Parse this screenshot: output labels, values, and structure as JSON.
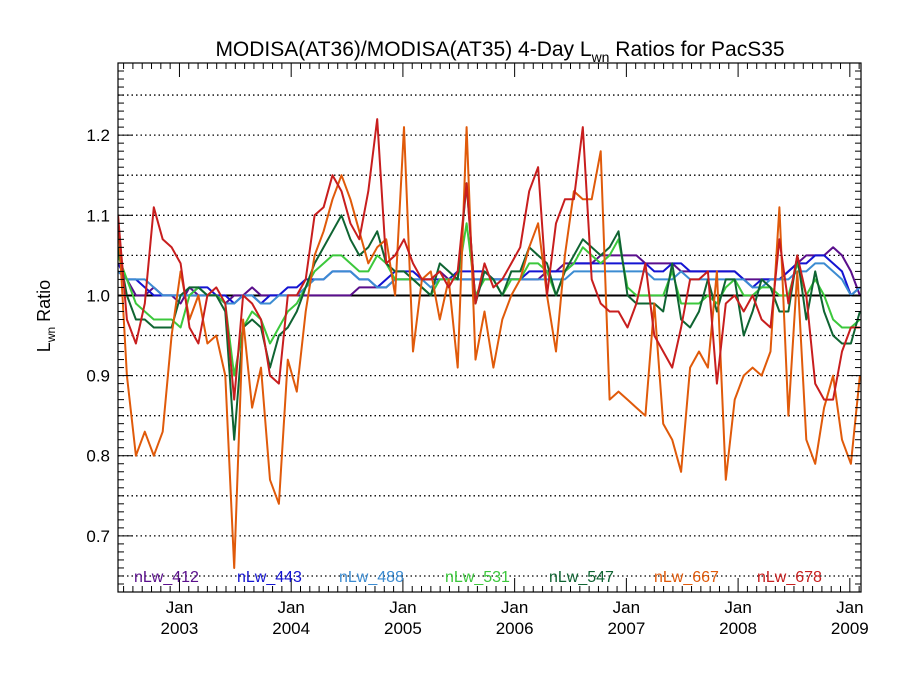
{
  "chart_data": {
    "type": "line",
    "title_main": "MODISA(AT36)/MODISA(AT35) 4-Day L",
    "title_sub": "wn",
    "title_tail": " Ratios for PacS35",
    "ylabel_main": "L",
    "ylabel_sub": "wn",
    "ylabel_tail": " Ratio",
    "xlim": [
      2002.45,
      2009.1
    ],
    "ylim": [
      0.63,
      1.29
    ],
    "yticks": [
      {
        "v": 0.7,
        "label": "0.7"
      },
      {
        "v": 0.8,
        "label": "0.8"
      },
      {
        "v": 0.9,
        "label": "0.9"
      },
      {
        "v": 1.0,
        "label": "1.0"
      },
      {
        "v": 1.1,
        "label": "1.1"
      },
      {
        "v": 1.2,
        "label": "1.2"
      }
    ],
    "grid_y": [
      0.65,
      0.7,
      0.75,
      0.8,
      0.85,
      0.9,
      0.95,
      1.05,
      1.1,
      1.15,
      1.2,
      1.25
    ],
    "reference_line": 1.0,
    "xticks": [
      {
        "v": 2003,
        "month": "Jan",
        "year": "2003"
      },
      {
        "v": 2004,
        "month": "Jan",
        "year": "2004"
      },
      {
        "v": 2005,
        "month": "Jan",
        "year": "2005"
      },
      {
        "v": 2006,
        "month": "Jan",
        "year": "2006"
      },
      {
        "v": 2007,
        "month": "Jan",
        "year": "2007"
      },
      {
        "v": 2008,
        "month": "Jan",
        "year": "2008"
      },
      {
        "v": 2009,
        "month": "Jan",
        "year": "2009"
      }
    ],
    "x": [
      2002.45,
      2002.53,
      2002.61,
      2002.69,
      2002.77,
      2002.85,
      2002.93,
      2003.01,
      2003.09,
      2003.17,
      2003.25,
      2003.33,
      2003.41,
      2003.49,
      2003.57,
      2003.65,
      2003.73,
      2003.81,
      2003.89,
      2003.97,
      2004.05,
      2004.13,
      2004.21,
      2004.29,
      2004.37,
      2004.45,
      2004.53,
      2004.61,
      2004.69,
      2004.77,
      2004.85,
      2004.93,
      2005.01,
      2005.09,
      2005.17,
      2005.25,
      2005.33,
      2005.41,
      2005.49,
      2005.57,
      2005.65,
      2005.73,
      2005.81,
      2005.89,
      2005.97,
      2006.05,
      2006.13,
      2006.21,
      2006.29,
      2006.37,
      2006.45,
      2006.53,
      2006.61,
      2006.69,
      2006.77,
      2006.85,
      2006.93,
      2007.01,
      2007.09,
      2007.17,
      2007.25,
      2007.33,
      2007.41,
      2007.49,
      2007.57,
      2007.65,
      2007.73,
      2007.81,
      2007.89,
      2007.97,
      2008.05,
      2008.13,
      2008.21,
      2008.29,
      2008.37,
      2008.45,
      2008.53,
      2008.61,
      2008.69,
      2008.77,
      2008.85,
      2008.93,
      2009.01,
      2009.09
    ],
    "series": [
      {
        "name": "nLw_412",
        "color": "#5a0f8c",
        "values": [
          1.03,
          1.02,
          1.0,
          1.0,
          1.01,
          1.0,
          1.0,
          0.99,
          1.01,
          1.0,
          1.0,
          1.0,
          0.99,
          1.0,
          1.0,
          1.01,
          1.0,
          1.0,
          1.0,
          1.0,
          1.0,
          1.0,
          1.0,
          1.0,
          1.0,
          1.0,
          1.0,
          1.01,
          1.01,
          1.01,
          1.01,
          1.02,
          1.02,
          1.02,
          1.02,
          1.02,
          1.03,
          1.02,
          1.02,
          1.02,
          1.02,
          1.02,
          1.02,
          1.02,
          1.02,
          1.02,
          1.02,
          1.02,
          1.03,
          1.03,
          1.04,
          1.04,
          1.04,
          1.04,
          1.05,
          1.05,
          1.05,
          1.05,
          1.05,
          1.04,
          1.04,
          1.04,
          1.04,
          1.03,
          1.03,
          1.03,
          1.03,
          1.03,
          1.03,
          1.03,
          1.02,
          1.02,
          1.02,
          1.02,
          1.02,
          1.03,
          1.04,
          1.05,
          1.05,
          1.05,
          1.06,
          1.05,
          1.03,
          1.0
        ]
      },
      {
        "name": "nLw_443",
        "color": "#1414d2",
        "values": [
          1.04,
          1.02,
          1.02,
          1.01,
          1.0,
          1.0,
          1.0,
          1.0,
          1.0,
          1.01,
          1.01,
          1.0,
          1.0,
          0.99,
          1.0,
          1.0,
          0.99,
          1.0,
          1.0,
          1.01,
          1.01,
          1.02,
          1.02,
          1.02,
          1.03,
          1.03,
          1.03,
          1.02,
          1.02,
          1.01,
          1.02,
          1.03,
          1.03,
          1.03,
          1.02,
          1.02,
          1.02,
          1.02,
          1.03,
          1.03,
          1.03,
          1.03,
          1.02,
          1.02,
          1.02,
          1.02,
          1.03,
          1.03,
          1.03,
          1.03,
          1.03,
          1.04,
          1.04,
          1.04,
          1.04,
          1.04,
          1.04,
          1.04,
          1.04,
          1.04,
          1.03,
          1.03,
          1.04,
          1.04,
          1.03,
          1.03,
          1.03,
          1.03,
          1.03,
          1.03,
          1.02,
          1.01,
          1.02,
          1.02,
          1.02,
          1.03,
          1.04,
          1.04,
          1.05,
          1.05,
          1.04,
          1.03,
          1.0,
          1.01
        ]
      },
      {
        "name": "nLw_488",
        "color": "#3c8cd2",
        "values": [
          1.03,
          1.02,
          1.02,
          1.02,
          1.01,
          1.0,
          1.0,
          1.0,
          1.0,
          1.0,
          1.0,
          1.0,
          0.99,
          0.99,
          1.0,
          1.0,
          0.99,
          0.99,
          1.0,
          1.0,
          1.0,
          1.01,
          1.02,
          1.02,
          1.03,
          1.03,
          1.03,
          1.02,
          1.02,
          1.01,
          1.01,
          1.02,
          1.02,
          1.02,
          1.02,
          1.01,
          1.02,
          1.02,
          1.02,
          1.02,
          1.02,
          1.02,
          1.02,
          1.02,
          1.02,
          1.02,
          1.02,
          1.02,
          1.02,
          1.02,
          1.02,
          1.03,
          1.03,
          1.03,
          1.03,
          1.03,
          1.03,
          1.03,
          1.03,
          1.03,
          1.02,
          1.02,
          1.02,
          1.03,
          1.02,
          1.02,
          1.02,
          1.02,
          1.02,
          1.02,
          1.02,
          1.01,
          1.01,
          1.02,
          1.02,
          1.02,
          1.03,
          1.03,
          1.04,
          1.04,
          1.03,
          1.02,
          1.0,
          1.01
        ]
      },
      {
        "name": "nLw_531",
        "color": "#3cc83c",
        "values": [
          1.05,
          1.02,
          0.99,
          0.98,
          0.97,
          0.97,
          0.97,
          0.96,
          1.0,
          1.01,
          1.0,
          1.0,
          0.99,
          0.9,
          0.96,
          0.98,
          0.97,
          0.94,
          0.96,
          0.98,
          0.99,
          1.01,
          1.03,
          1.04,
          1.05,
          1.05,
          1.04,
          1.03,
          1.03,
          1.05,
          1.04,
          1.02,
          1.02,
          1.02,
          1.01,
          1.0,
          1.02,
          1.02,
          1.02,
          1.09,
          1.0,
          1.02,
          1.02,
          1.0,
          1.02,
          1.02,
          1.04,
          1.04,
          1.03,
          1.0,
          1.03,
          1.04,
          1.06,
          1.05,
          1.04,
          1.05,
          1.07,
          1.01,
          1.0,
          1.0,
          1.0,
          1.0,
          1.03,
          0.99,
          0.99,
          0.99,
          1.0,
          0.99,
          1.01,
          1.02,
          1.0,
          1.0,
          1.01,
          1.01,
          1.0,
          1.0,
          1.04,
          1.0,
          1.02,
          1.0,
          0.97,
          0.96,
          0.96,
          0.97
        ]
      },
      {
        "name": "nLw_547",
        "color": "#0f6432",
        "values": [
          1.06,
          1.0,
          0.97,
          0.97,
          0.96,
          0.96,
          0.96,
          1.0,
          1.01,
          1.01,
          1.0,
          1.0,
          0.98,
          0.82,
          0.96,
          0.97,
          0.96,
          0.91,
          0.95,
          0.96,
          0.98,
          1.01,
          1.04,
          1.06,
          1.08,
          1.1,
          1.07,
          1.05,
          1.06,
          1.08,
          1.04,
          1.03,
          1.03,
          1.02,
          1.01,
          1.0,
          1.04,
          1.03,
          1.02,
          1.14,
          0.99,
          1.03,
          1.02,
          1.0,
          1.03,
          1.03,
          1.06,
          1.05,
          1.04,
          1.0,
          1.03,
          1.05,
          1.07,
          1.06,
          1.05,
          1.06,
          1.08,
          1.0,
          0.99,
          0.99,
          0.99,
          0.98,
          1.04,
          0.97,
          0.96,
          0.98,
          1.02,
          0.98,
          1.02,
          1.02,
          0.95,
          0.98,
          1.02,
          1.01,
          0.98,
          0.98,
          1.05,
          0.97,
          1.03,
          0.98,
          0.95,
          0.94,
          0.94,
          0.98
        ]
      },
      {
        "name": "nLw_667",
        "color": "#e05a0a",
        "values": [
          1.1,
          0.9,
          0.8,
          0.83,
          0.8,
          0.83,
          0.95,
          1.03,
          0.97,
          1.0,
          0.94,
          0.95,
          0.9,
          0.66,
          0.97,
          0.86,
          0.91,
          0.77,
          0.74,
          0.92,
          0.88,
          0.98,
          1.05,
          1.08,
          1.12,
          1.15,
          1.12,
          1.08,
          1.04,
          1.06,
          1.07,
          1.0,
          1.21,
          0.93,
          1.02,
          1.03,
          0.97,
          1.02,
          0.91,
          1.21,
          0.92,
          0.98,
          0.91,
          0.97,
          1.0,
          1.02,
          1.06,
          1.09,
          1.0,
          0.93,
          1.05,
          1.13,
          1.12,
          1.12,
          1.18,
          0.87,
          0.88,
          0.87,
          0.86,
          0.85,
          0.99,
          0.84,
          0.82,
          0.78,
          0.91,
          0.93,
          0.91,
          1.03,
          0.77,
          0.87,
          0.9,
          0.91,
          0.9,
          0.93,
          1.11,
          0.85,
          1.03,
          0.82,
          0.79,
          0.86,
          0.9,
          0.82,
          0.79,
          0.9
        ]
      },
      {
        "name": "nLw_678",
        "color": "#c81e1e",
        "values": [
          1.1,
          0.97,
          0.94,
          0.99,
          1.11,
          1.07,
          1.06,
          1.04,
          0.96,
          0.94,
          1.0,
          1.01,
          0.99,
          0.87,
          1.0,
          0.99,
          0.97,
          0.9,
          0.89,
          1.0,
          1.0,
          1.02,
          1.1,
          1.11,
          1.15,
          1.13,
          1.09,
          1.07,
          1.13,
          1.22,
          1.04,
          1.05,
          1.07,
          1.04,
          1.02,
          1.02,
          1.03,
          1.01,
          1.03,
          1.14,
          0.99,
          1.04,
          1.01,
          1.02,
          1.04,
          1.06,
          1.13,
          1.16,
          1.0,
          1.09,
          1.12,
          1.12,
          1.21,
          1.02,
          0.99,
          0.98,
          0.98,
          0.96,
          0.99,
          1.04,
          0.95,
          0.93,
          0.91,
          0.96,
          1.02,
          1.02,
          1.03,
          0.89,
          0.99,
          1.0,
          0.98,
          1.0,
          0.97,
          0.96,
          1.07,
          0.99,
          1.05,
          1.0,
          0.89,
          0.87,
          0.87,
          0.93,
          0.96,
          0.96
        ]
      }
    ]
  }
}
